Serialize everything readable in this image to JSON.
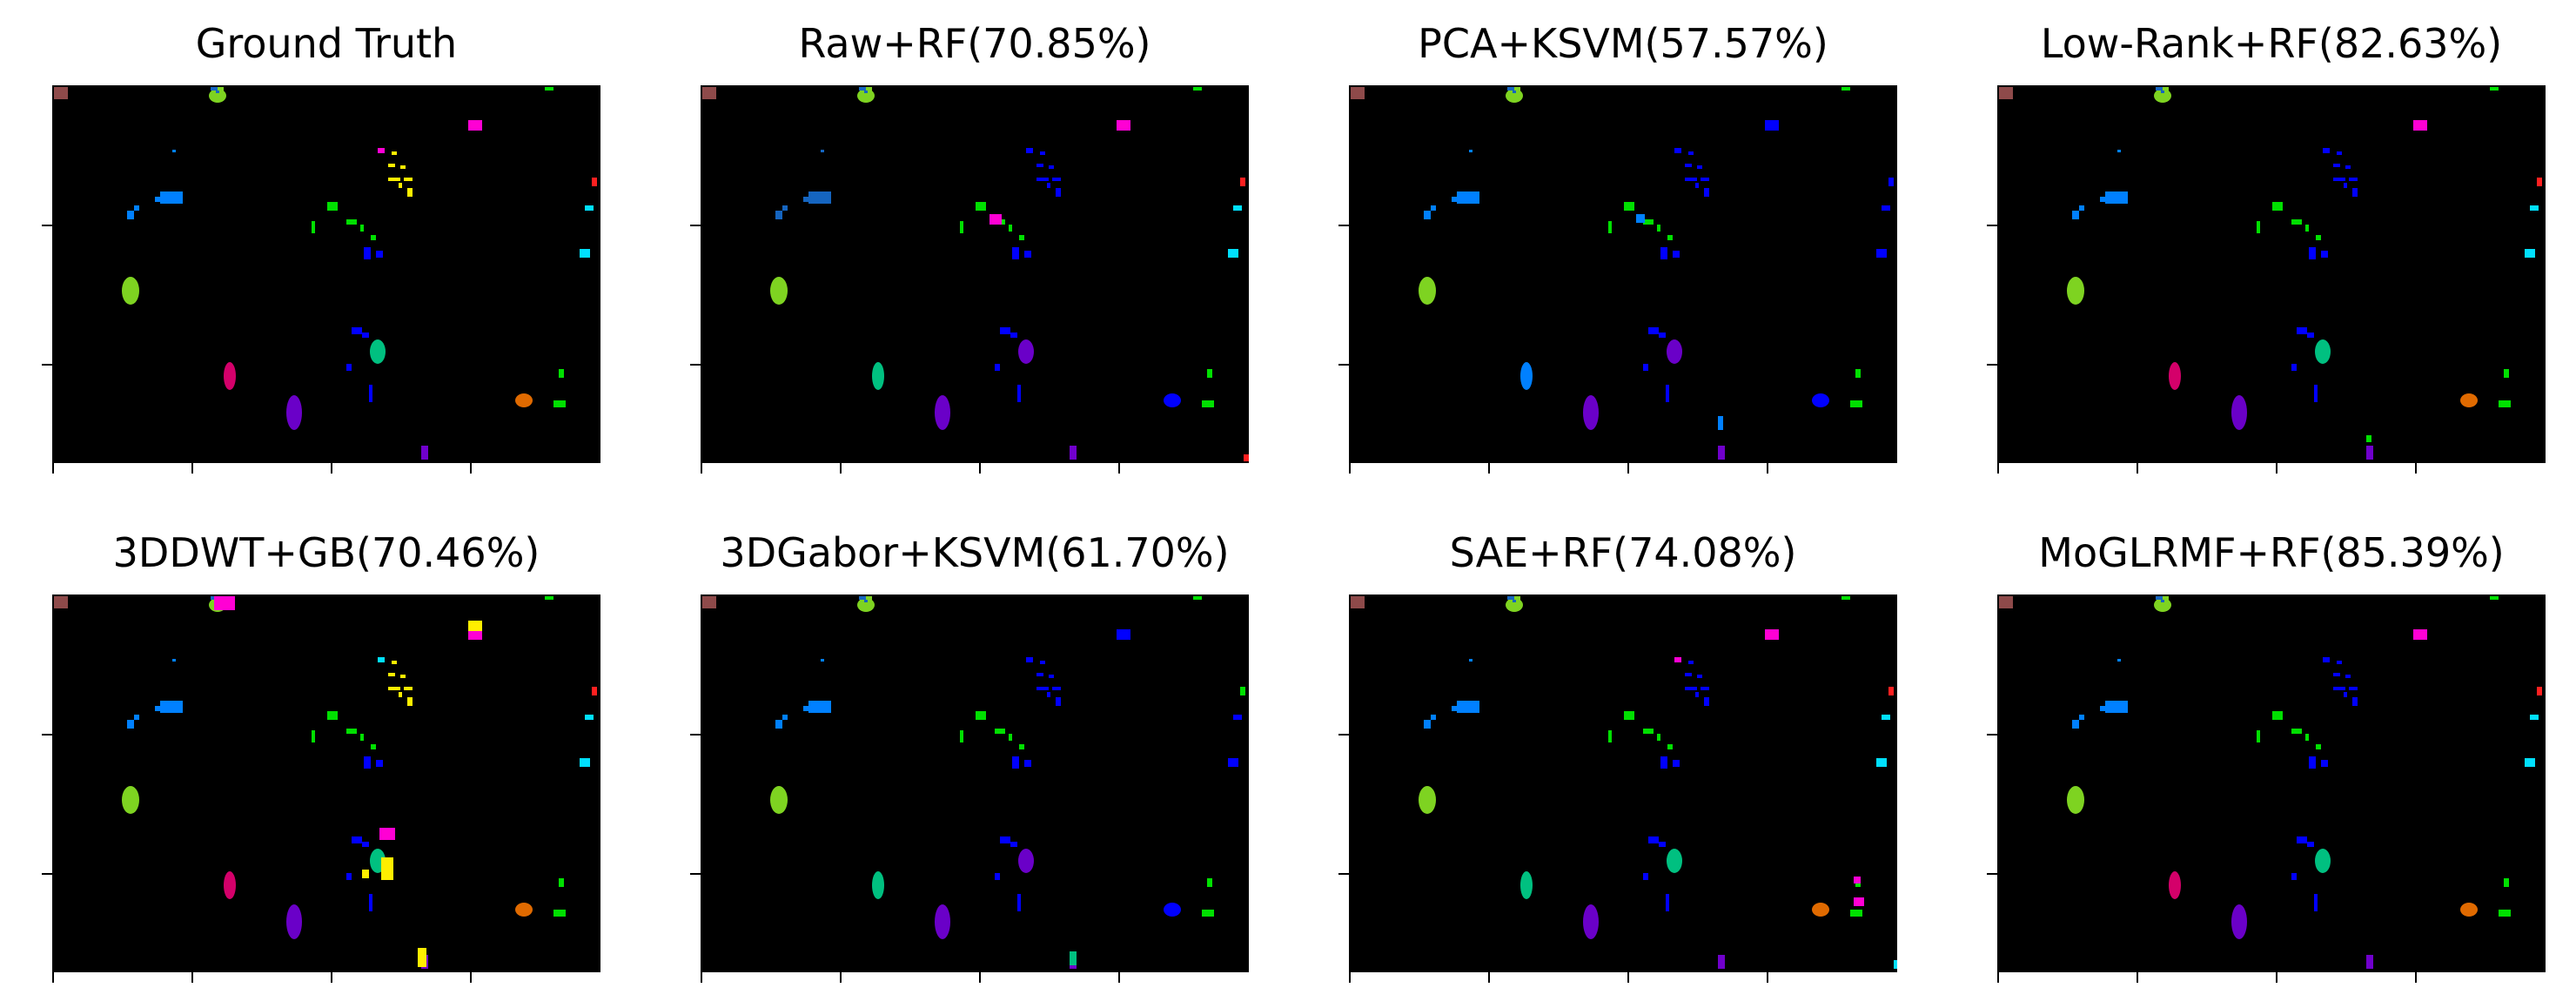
{
  "figure": {
    "panels": [
      {
        "title": "Ground Truth",
        "variant": "gt"
      },
      {
        "title": "Raw+RF(70.85%)",
        "variant": "raw"
      },
      {
        "title": "PCA+KSVM(57.57%)",
        "variant": "pca"
      },
      {
        "title": "Low-Rank+RF(82.63%)",
        "variant": "lowrank"
      },
      {
        "title": "3DDWT+GB(70.46%)",
        "variant": "dwt"
      },
      {
        "title": "3DGabor+KSVM(61.70%)",
        "variant": "gabor"
      },
      {
        "title": "SAE+RF(74.08%)",
        "variant": "sae"
      },
      {
        "title": "MoGLRMF+RF(85.39%)",
        "variant": "moglrmf"
      }
    ]
  }
}
